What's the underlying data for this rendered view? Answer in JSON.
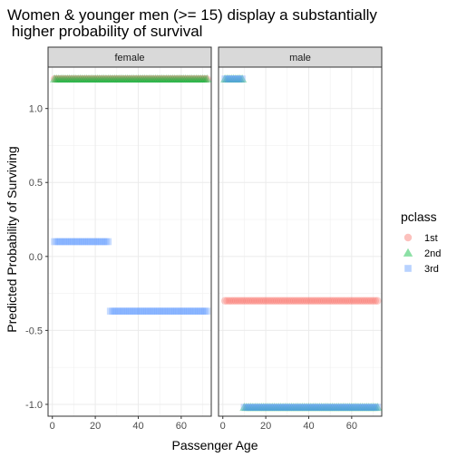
{
  "chart_data": {
    "type": "scatter",
    "title_lines": [
      "Women & younger men (>= 15) display a substantially",
      " higher probability of survival"
    ],
    "xlabel": "Passenger Age",
    "ylabel": "Predicted Probability of Surviving",
    "xlim": [
      -2,
      74
    ],
    "ylim": [
      -1.08,
      1.28
    ],
    "xticks": [
      0,
      20,
      40,
      60
    ],
    "yticks": [
      -1.0,
      -0.5,
      0.0,
      0.5,
      1.0
    ],
    "ytick_labels": [
      "-1.0",
      "-0.5",
      "0.0",
      "0.5",
      "1.0"
    ],
    "grid": true,
    "facets": [
      "female",
      "male"
    ],
    "legend": {
      "title": "pclass",
      "position": "right",
      "items": [
        {
          "label": "1st",
          "shape": "circle",
          "color": "#F8766D"
        },
        {
          "label": "2nd",
          "shape": "triangle",
          "color": "#00BA38"
        },
        {
          "label": "3rd",
          "shape": "square",
          "color": "#619CFF"
        }
      ]
    },
    "series": [
      {
        "facet": "female",
        "class": "1st",
        "shape": "circle",
        "color": "#F8766D",
        "y": 1.2,
        "x_start": 0.9,
        "x_end": 72
      },
      {
        "facet": "female",
        "class": "2nd",
        "shape": "triangle",
        "color": "#00BA38",
        "y": 1.2,
        "x_start": 0.9,
        "x_end": 72
      },
      {
        "facet": "female",
        "class": "3rd",
        "shape": "square",
        "color": "#619CFF",
        "y": 0.1,
        "x_start": 0.9,
        "x_end": 26
      },
      {
        "facet": "female",
        "class": "3rd",
        "shape": "square",
        "color": "#619CFF",
        "y": -0.37,
        "x_start": 27,
        "x_end": 72
      },
      {
        "facet": "male",
        "class": "1st",
        "shape": "circle",
        "color": "#F8766D",
        "y": -0.3,
        "x_start": 0.9,
        "x_end": 72
      },
      {
        "facet": "male",
        "class": "2nd",
        "shape": "triangle",
        "color": "#00BA38",
        "y": 1.2,
        "x_start": 0.9,
        "x_end": 9
      },
      {
        "facet": "male",
        "class": "3rd",
        "shape": "square",
        "color": "#619CFF",
        "y": 1.2,
        "x_start": 0.9,
        "x_end": 9
      },
      {
        "facet": "male",
        "class": "2nd",
        "shape": "triangle",
        "color": "#00BA38",
        "y": -1.02,
        "x_start": 10,
        "x_end": 72
      },
      {
        "facet": "male",
        "class": "3rd",
        "shape": "square",
        "color": "#619CFF",
        "y": -1.02,
        "x_start": 10,
        "x_end": 72
      }
    ]
  }
}
